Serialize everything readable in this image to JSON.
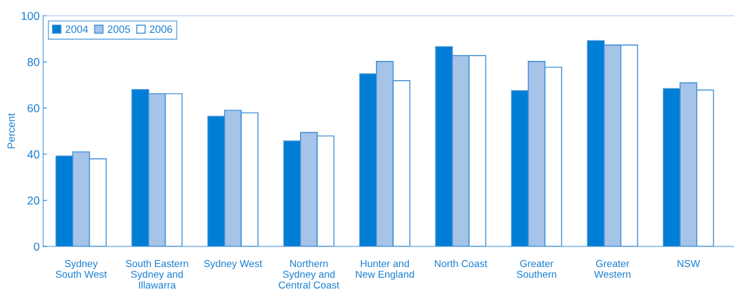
{
  "chart_data": {
    "type": "bar",
    "ylabel": "Percent",
    "categories": [
      "Sydney\nSouth West",
      "South Eastern\nSydney and\nIllawarra",
      "Sydney West",
      "Northern\nSydney and\nCentral Coast",
      "Hunter and\nNew England",
      "North Coast",
      "Greater\nSouthern",
      "Greater\nWestern",
      "NSW"
    ],
    "series": [
      {
        "name": "2004",
        "color": "#007dd4",
        "values": [
          39.2,
          68,
          56.4,
          45.7,
          74.8,
          86.6,
          67.5,
          89.2,
          68.4
        ]
      },
      {
        "name": "2005",
        "color": "#a6c3e8",
        "values": [
          41,
          66.2,
          59,
          49.4,
          80.2,
          82.7,
          80.2,
          87.3,
          70.9
        ]
      },
      {
        "name": "2006",
        "color": "#ffffff",
        "values": [
          38,
          66.2,
          57.9,
          47.9,
          71.9,
          82.7,
          77.7,
          87.3,
          67.8
        ]
      }
    ],
    "ylim": [
      0,
      100
    ],
    "yticks": [
      0,
      20,
      40,
      60,
      80,
      100
    ],
    "grid": false,
    "legend": "top left"
  }
}
